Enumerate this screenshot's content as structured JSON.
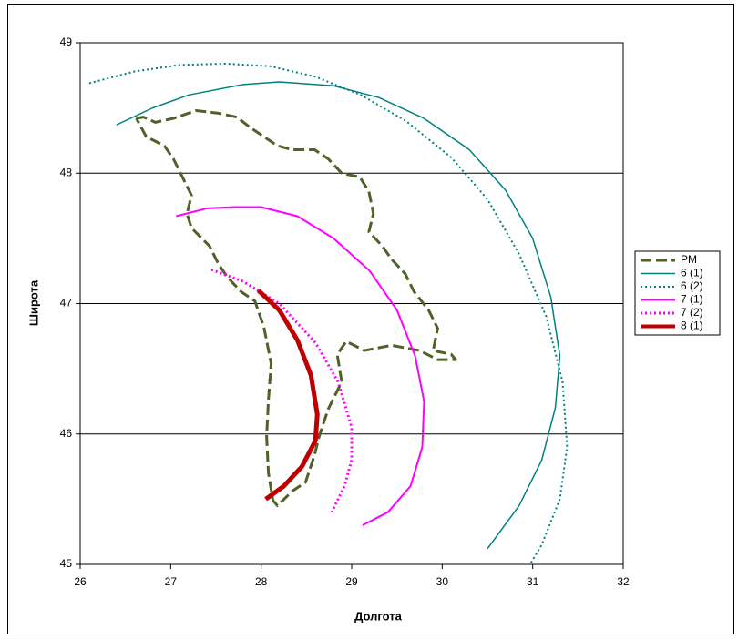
{
  "chart_data": {
    "type": "line",
    "x_label": "Долгота",
    "y_label": "Широта",
    "xlim": [
      26,
      32
    ],
    "xticks": [
      26,
      27,
      28,
      29,
      30,
      31,
      32
    ],
    "ylim": [
      45,
      49
    ],
    "yticks": [
      45,
      46,
      47,
      48,
      49
    ],
    "grid": true,
    "legend": "right",
    "series": [
      {
        "name": "PM",
        "color": "#4f6228",
        "style": "dashed",
        "width": 3,
        "x": [
          26.62,
          26.7,
          26.83,
          27.03,
          27.28,
          27.53,
          27.73,
          27.88,
          28.03,
          28.18,
          28.34,
          28.59,
          28.74,
          28.89,
          29.09,
          29.19,
          29.24,
          29.19,
          29.34,
          29.44,
          29.59,
          29.69,
          29.85,
          29.95,
          29.9,
          30.1,
          30.15,
          29.95,
          29.75,
          29.44,
          29.14,
          28.94,
          28.84,
          28.89,
          28.74,
          28.64,
          28.59,
          28.49,
          28.34,
          28.18,
          28.13,
          28.08,
          28.06,
          28.08,
          28.11,
          28.03,
          27.93,
          27.78,
          27.63,
          27.53,
          27.43,
          27.23,
          27.18,
          27.23,
          27.13,
          27.03,
          26.93,
          26.73,
          26.62
        ],
        "values": [
          48.42,
          48.43,
          48.39,
          48.42,
          48.48,
          48.46,
          48.43,
          48.35,
          48.28,
          48.21,
          48.18,
          48.18,
          48.11,
          48.0,
          47.97,
          47.86,
          47.69,
          47.55,
          47.44,
          47.34,
          47.23,
          47.09,
          46.95,
          46.81,
          46.64,
          46.61,
          46.57,
          46.57,
          46.64,
          46.68,
          46.64,
          46.71,
          46.61,
          46.4,
          46.19,
          45.98,
          45.84,
          45.63,
          45.56,
          45.45,
          45.49,
          45.7,
          45.98,
          46.26,
          46.54,
          46.82,
          47.02,
          47.09,
          47.2,
          47.3,
          47.44,
          47.58,
          47.69,
          47.83,
          47.97,
          48.11,
          48.21,
          48.28,
          48.42
        ]
      },
      {
        "name": "6 (1)",
        "color": "#008080",
        "style": "solid",
        "width": 1.5,
        "x": [
          26.4,
          26.8,
          27.2,
          27.8,
          28.2,
          28.8,
          29.3,
          29.8,
          30.3,
          30.7,
          31.0,
          31.2,
          31.3,
          31.25,
          31.1,
          30.85,
          30.5
        ],
        "values": [
          48.37,
          48.5,
          48.6,
          48.68,
          48.7,
          48.67,
          48.58,
          48.42,
          48.18,
          47.87,
          47.5,
          47.05,
          46.6,
          46.2,
          45.8,
          45.45,
          45.12
        ]
      },
      {
        "name": "6 (2)",
        "color": "#008080",
        "style": "dotted",
        "width": 2,
        "x": [
          26.1,
          26.6,
          27.1,
          27.6,
          28.1,
          28.6,
          29.1,
          29.6,
          30.1,
          30.5,
          30.85,
          31.15,
          31.33,
          31.38,
          31.3,
          31.1,
          30.97
        ],
        "values": [
          48.69,
          48.78,
          48.83,
          48.84,
          48.82,
          48.74,
          48.6,
          48.4,
          48.12,
          47.8,
          47.38,
          46.9,
          46.4,
          45.9,
          45.5,
          45.15,
          45.0
        ]
      },
      {
        "name": "7 (1)",
        "color": "#ff00ff",
        "style": "solid",
        "width": 2,
        "x": [
          27.06,
          27.4,
          27.7,
          28.0,
          28.4,
          28.8,
          29.2,
          29.5,
          29.7,
          29.8,
          29.78,
          29.65,
          29.4,
          29.12
        ],
        "values": [
          47.67,
          47.73,
          47.74,
          47.74,
          47.67,
          47.5,
          47.25,
          46.95,
          46.6,
          46.25,
          45.9,
          45.6,
          45.4,
          45.3
        ]
      },
      {
        "name": "7 (2)",
        "color": "#ff00ff",
        "style": "dotted",
        "width": 3,
        "x": [
          27.45,
          27.8,
          28.2,
          28.6,
          28.85,
          29.0,
          29.0,
          28.92,
          28.78
        ],
        "values": [
          47.26,
          47.17,
          47.0,
          46.7,
          46.4,
          46.05,
          45.8,
          45.6,
          45.4
        ]
      },
      {
        "name": "8 (1)",
        "color": "#c00000",
        "style": "solid",
        "width": 5,
        "x": [
          27.97,
          28.2,
          28.4,
          28.55,
          28.62,
          28.6,
          28.45,
          28.25,
          28.05
        ],
        "values": [
          47.1,
          46.95,
          46.72,
          46.45,
          46.15,
          45.95,
          45.75,
          45.6,
          45.5
        ]
      }
    ]
  }
}
